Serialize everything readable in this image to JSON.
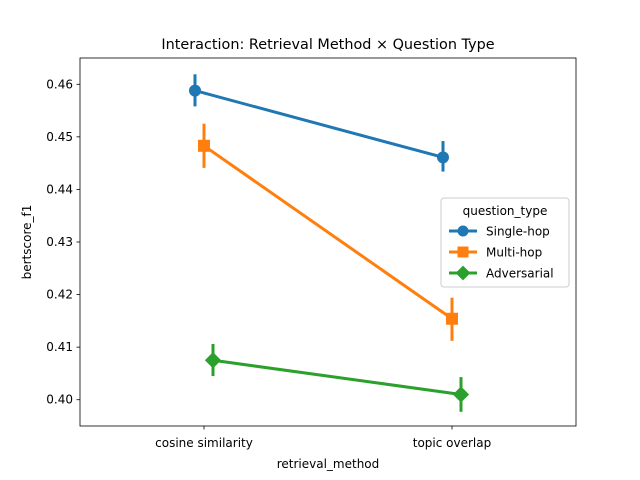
{
  "chart_data": {
    "type": "line",
    "title": "Interaction: Retrieval Method × Question Type",
    "xlabel": "retrieval_method",
    "ylabel": "bertscore_f1",
    "categories": [
      "cosine similarity",
      "topic overlap"
    ],
    "ylim": [
      0.395,
      0.465
    ],
    "yticks": [
      0.4,
      0.41,
      0.42,
      0.43,
      0.44,
      0.45,
      0.46
    ],
    "grid": false,
    "legend": {
      "title": "question_type",
      "placement": "center-right"
    },
    "series": [
      {
        "name": "Single-hop",
        "color": "#1f77b4",
        "marker": "circle",
        "values": [
          0.4588,
          0.4461
        ],
        "ci": [
          [
            0.4558,
            0.4619
          ],
          [
            0.4434,
            0.4492
          ]
        ]
      },
      {
        "name": "Multi-hop",
        "color": "#ff7f0e",
        "marker": "square",
        "values": [
          0.4483,
          0.4154
        ],
        "ci": [
          [
            0.4441,
            0.4525
          ],
          [
            0.4112,
            0.4194
          ]
        ]
      },
      {
        "name": "Adversarial",
        "color": "#2ca02c",
        "marker": "diamond",
        "values": [
          0.4075,
          0.401
        ],
        "ci": [
          [
            0.4045,
            0.4106
          ],
          [
            0.3977,
            0.4043
          ]
        ]
      }
    ]
  }
}
